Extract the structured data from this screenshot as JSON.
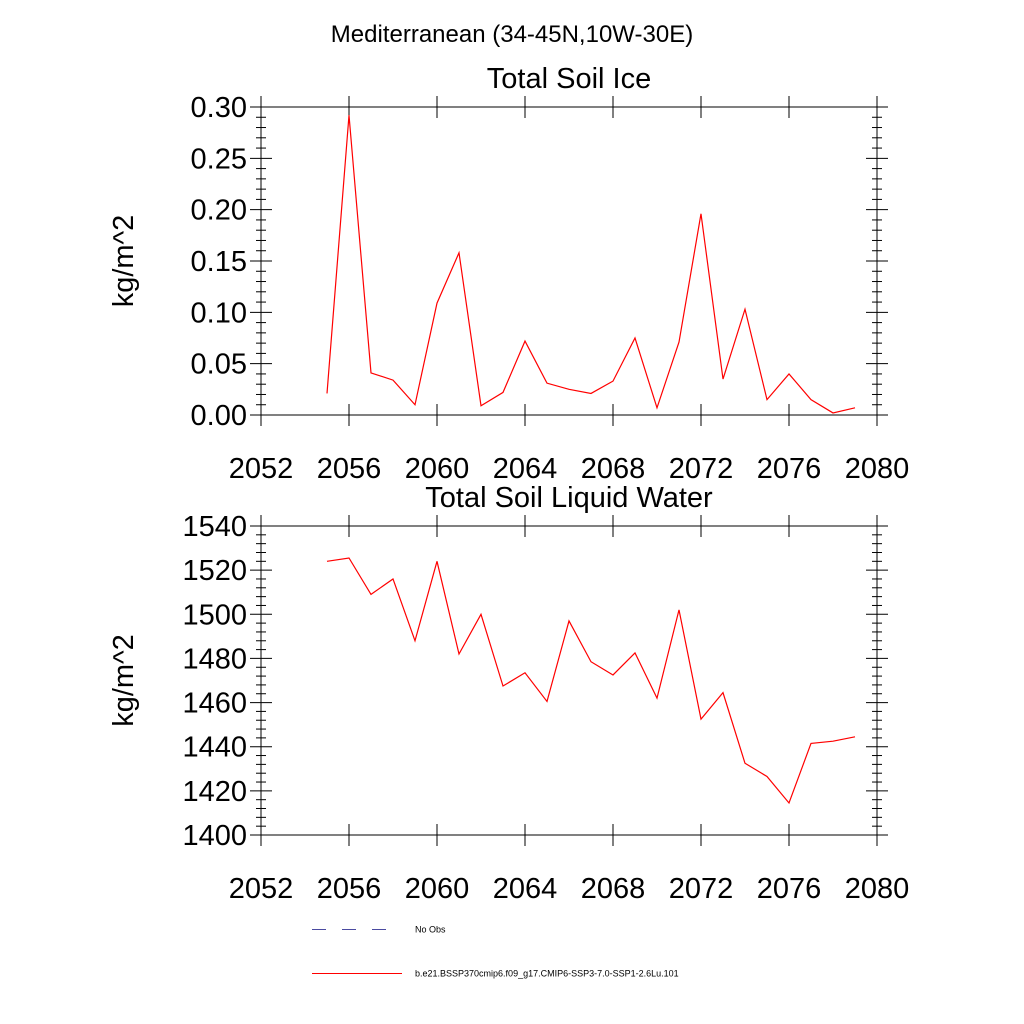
{
  "figure": {
    "title": "Mediterranean (34-45N,10W-30E)"
  },
  "chart_data": [
    {
      "type": "line",
      "title": "Total Soil Ice",
      "xlabel": "",
      "ylabel": "kg/m^2",
      "xlim": [
        2052,
        2080
      ],
      "ylim": [
        0,
        0.3
      ],
      "xticks": [
        2052,
        2056,
        2060,
        2064,
        2068,
        2072,
        2076,
        2080
      ],
      "xtick_labels": [
        "2052",
        "2056",
        "2060",
        "2064",
        "2068",
        "2072",
        "2076",
        "2080"
      ],
      "yticks": [
        0,
        0.05,
        0.1,
        0.15,
        0.2,
        0.25,
        0.3
      ],
      "ytick_labels": [
        "0.00",
        "0.05",
        "0.10",
        "0.15",
        "0.20",
        "0.25",
        "0.30"
      ],
      "grid": false,
      "x": [
        2055,
        2056,
        2057,
        2058,
        2059,
        2060,
        2061,
        2062,
        2063,
        2064,
        2065,
        2066,
        2067,
        2068,
        2069,
        2070,
        2071,
        2072,
        2073,
        2074,
        2075,
        2076,
        2077,
        2078,
        2079
      ],
      "series": [
        {
          "name": "b.e21.BSSP370cmip6.f09_g17.CMIP6-SSP3-7.0-SSP1-2.6Lu.101",
          "color": "#ff0000",
          "values": [
            0.021,
            0.292,
            0.041,
            0.034,
            0.01,
            0.109,
            0.158,
            0.009,
            0.022,
            0.072,
            0.031,
            0.025,
            0.021,
            0.033,
            0.075,
            0.007,
            0.071,
            0.196,
            0.035,
            0.103,
            0.015,
            0.04,
            0.015,
            0.002,
            0.007
          ]
        }
      ]
    },
    {
      "type": "line",
      "title": "Total Soil Liquid Water",
      "xlabel": "",
      "ylabel": "kg/m^2",
      "xlim": [
        2052,
        2080
      ],
      "ylim": [
        1400,
        1540
      ],
      "xticks": [
        2052,
        2056,
        2060,
        2064,
        2068,
        2072,
        2076,
        2080
      ],
      "xtick_labels": [
        "2052",
        "2056",
        "2060",
        "2064",
        "2068",
        "2072",
        "2076",
        "2080"
      ],
      "yticks": [
        1400,
        1420,
        1440,
        1460,
        1480,
        1500,
        1520,
        1540
      ],
      "ytick_labels": [
        "1400",
        "1420",
        "1440",
        "1460",
        "1480",
        "1500",
        "1520",
        "1540"
      ],
      "grid": false,
      "x": [
        2055,
        2056,
        2057,
        2058,
        2059,
        2060,
        2061,
        2062,
        2063,
        2064,
        2065,
        2066,
        2067,
        2068,
        2069,
        2070,
        2071,
        2072,
        2073,
        2074,
        2075,
        2076,
        2077,
        2078,
        2079
      ],
      "series": [
        {
          "name": "b.e21.BSSP370cmip6.f09_g17.CMIP6-SSP3-7.0-SSP1-2.6Lu.101",
          "color": "#ff0000",
          "values": [
            1524,
            1525.5,
            1509,
            1516,
            1488,
            1524,
            1482,
            1500,
            1467.5,
            1473.5,
            1460.5,
            1497,
            1478.5,
            1472.5,
            1482.5,
            1462,
            1502,
            1452.5,
            1464.5,
            1432.5,
            1426.5,
            1414.5,
            1441.5,
            1442.5,
            1444.5
          ]
        }
      ]
    }
  ],
  "legend": {
    "position": "bottom",
    "items": [
      {
        "label": "No Obs",
        "style": "dashed",
        "color": "#4a4aa0"
      },
      {
        "label": "b.e21.BSSP370cmip6.f09_g17.CMIP6-SSP3-7.0-SSP1-2.6Lu.101",
        "style": "solid",
        "color": "#ff0000"
      }
    ]
  }
}
